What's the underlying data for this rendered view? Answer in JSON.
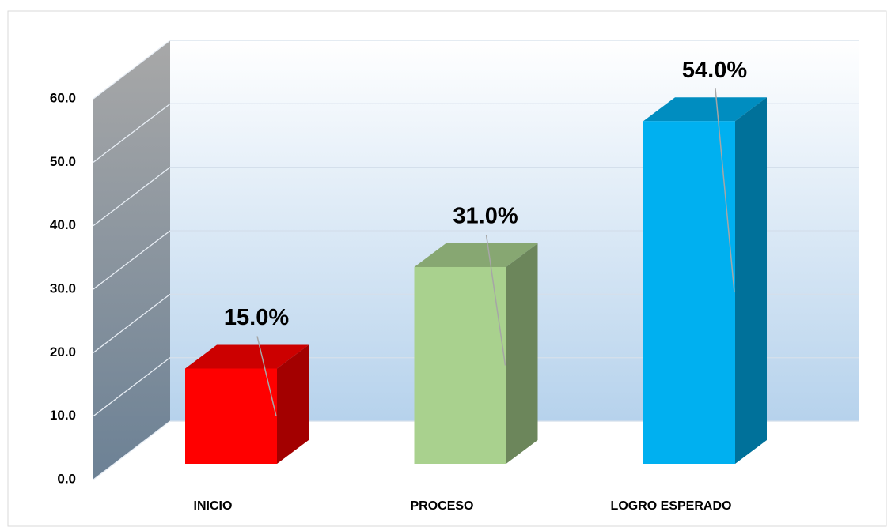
{
  "chart_data": {
    "type": "bar3d",
    "categories": [
      "INICIO",
      "PROCESO",
      "LOGRO ESPERADO"
    ],
    "values": [
      15,
      31,
      54
    ],
    "value_labels": [
      "15.0%",
      "31.0%",
      "54.0%"
    ],
    "colors": [
      "#ff0000",
      "#a9d18e",
      "#00b0f0"
    ],
    "ylim": [
      0,
      60
    ],
    "yticks": [
      {
        "value": 0,
        "label": "0.0"
      },
      {
        "value": 10,
        "label": "10.0"
      },
      {
        "value": 20,
        "label": "20.0"
      },
      {
        "value": 30,
        "label": "30.0"
      },
      {
        "value": 40,
        "label": "40.0"
      },
      {
        "value": 50,
        "label": "50.0"
      },
      {
        "value": 60,
        "label": "60.0"
      }
    ],
    "grid": true
  }
}
